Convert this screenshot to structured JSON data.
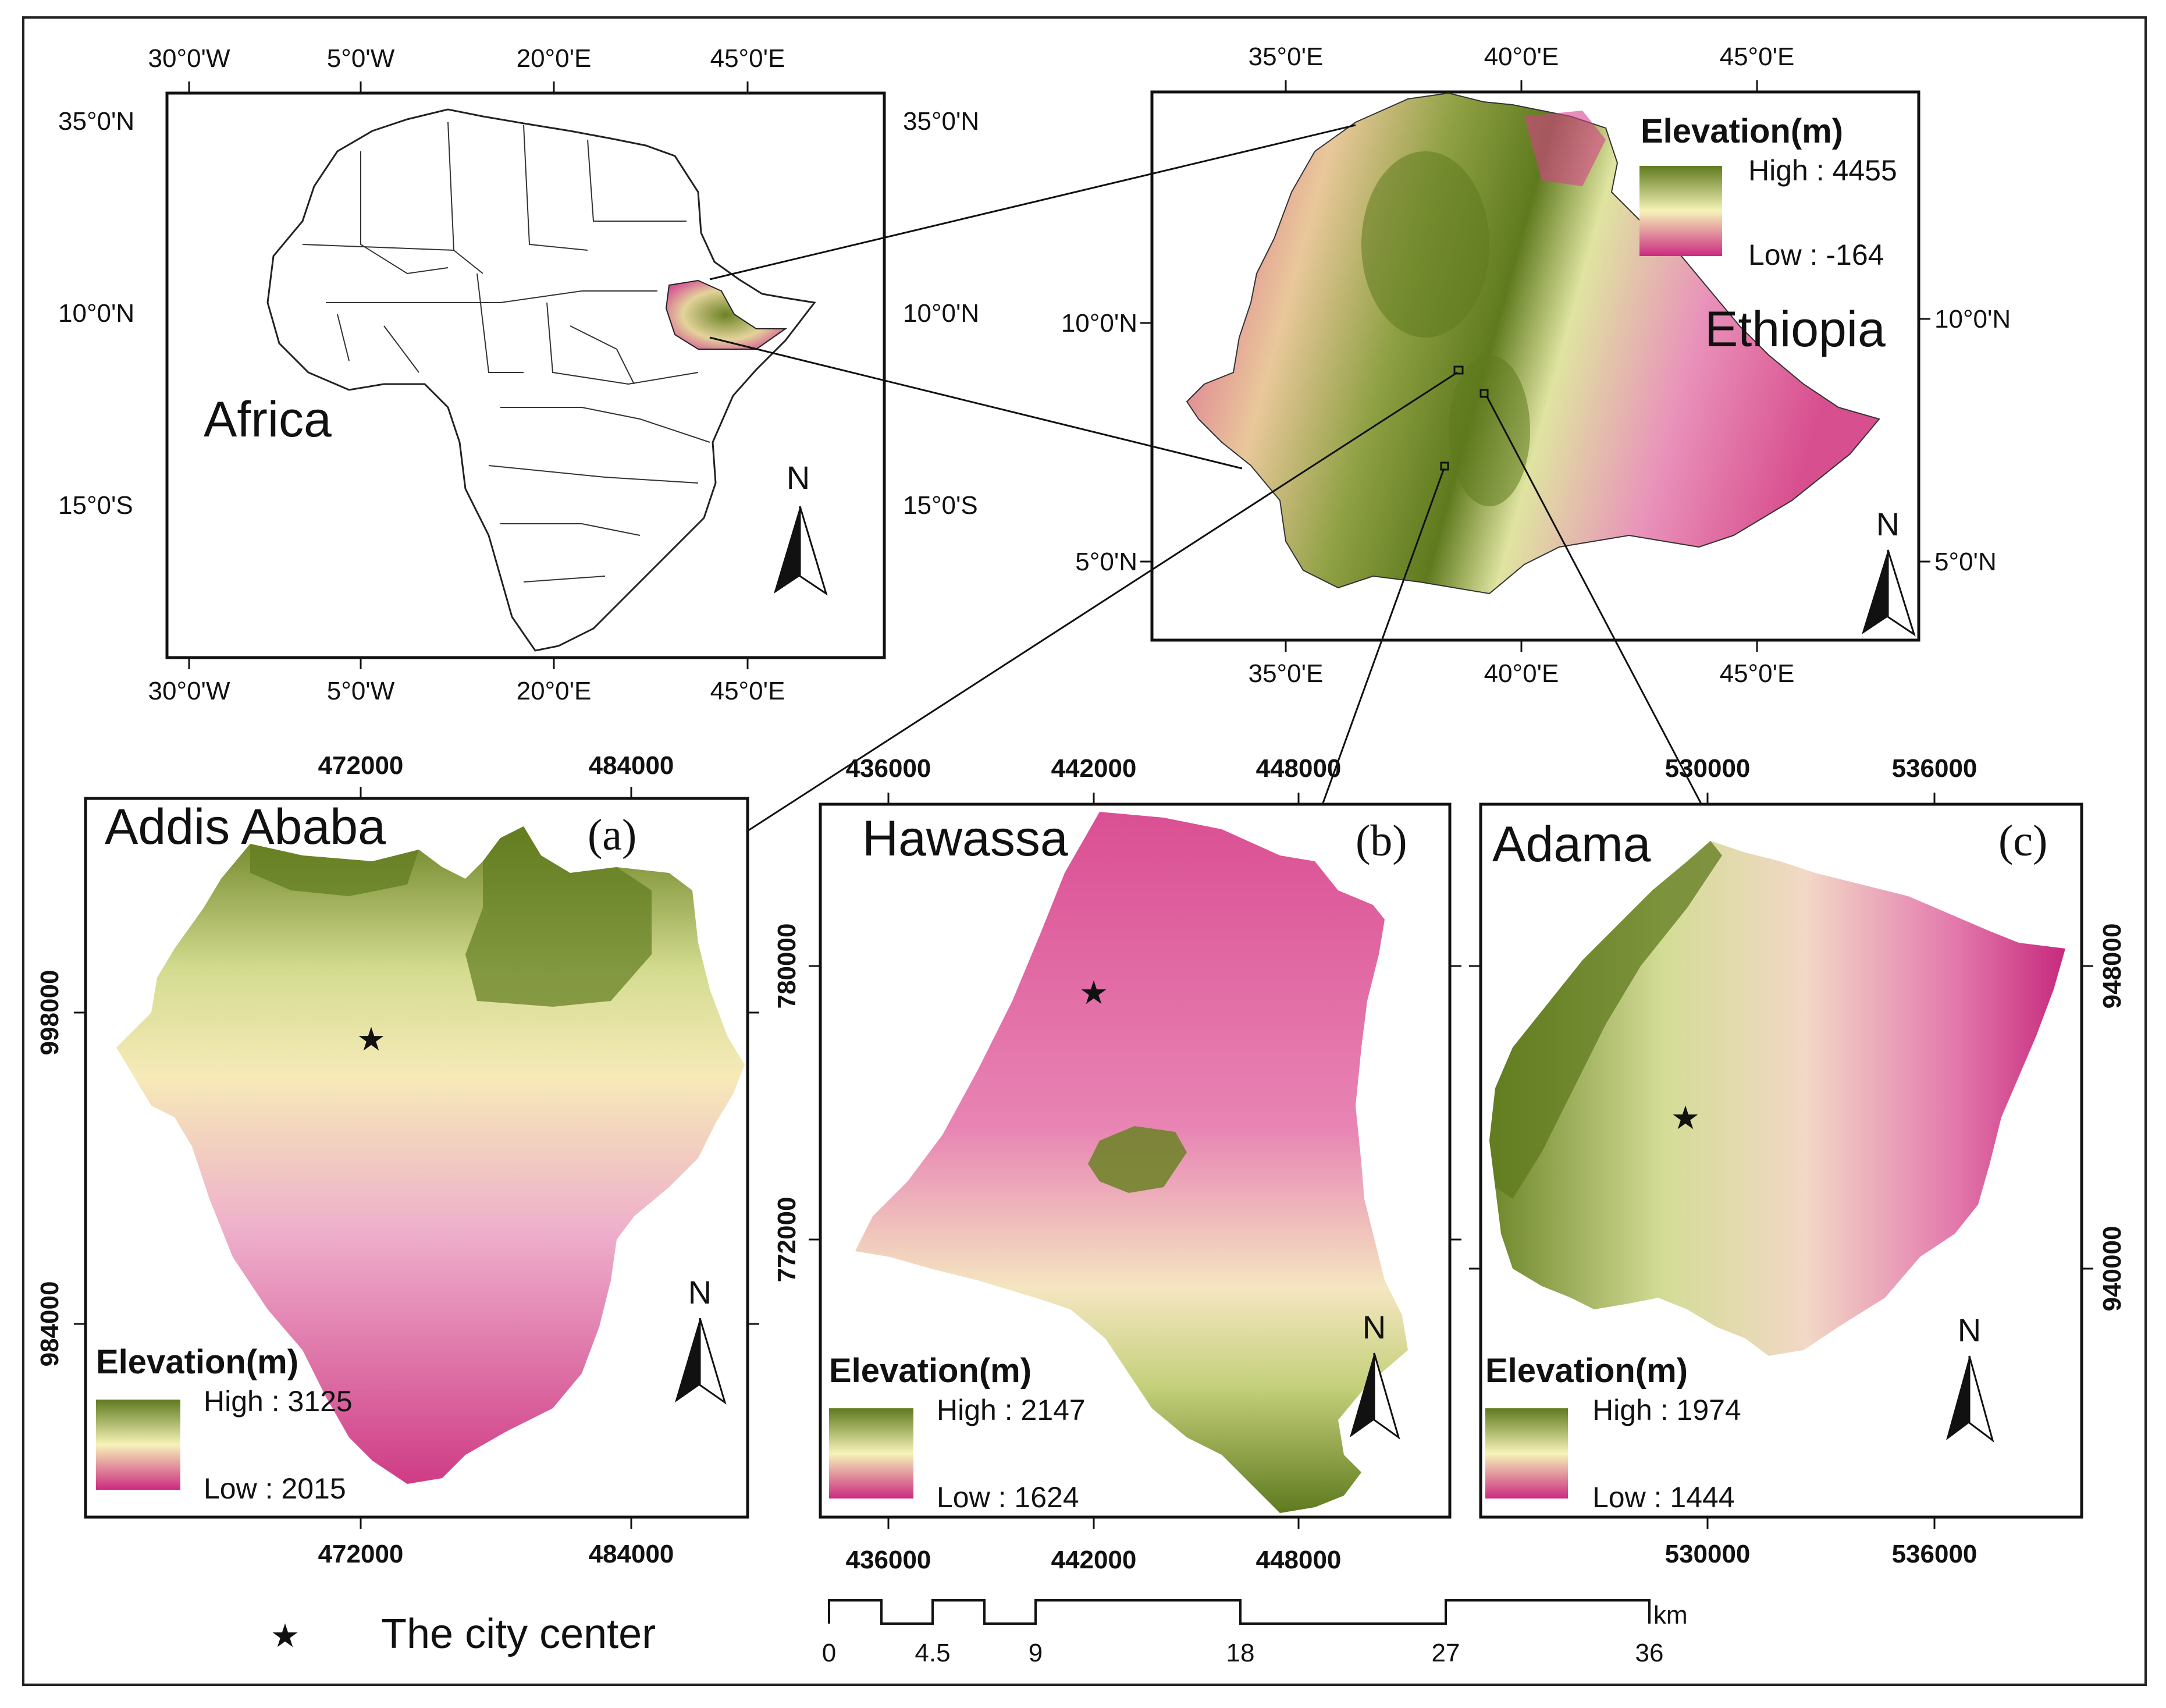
{
  "africa": {
    "label": "Africa",
    "top_ticks": [
      "30°0'W",
      "5°0'W",
      "20°0'E",
      "45°0'E"
    ],
    "bottom_ticks": [
      "30°0'W",
      "5°0'W",
      "20°0'E",
      "45°0'E"
    ],
    "left_ticks": [
      "35°0'N",
      "10°0'N",
      "15°0'S"
    ],
    "right_ticks": [
      "35°0'N",
      "10°0'N",
      "15°0'S"
    ],
    "north": "N"
  },
  "ethiopia": {
    "label": "Ethiopia",
    "top_ticks": [
      "35°0'E",
      "40°0'E",
      "45°0'E"
    ],
    "bottom_ticks": [
      "35°0'E",
      "40°0'E",
      "45°0'E"
    ],
    "left_ticks": [
      "10°0'N",
      "5°0'N"
    ],
    "right_ticks": [
      "10°0'N",
      "5°0'N"
    ],
    "legend": {
      "title": "Elevation(m)",
      "high": "High : 4455",
      "low": "Low : -164"
    },
    "north": "N"
  },
  "addis": {
    "name": "Addis Ababa",
    "letter": "(a)",
    "top_ticks": [
      "472000",
      "484000"
    ],
    "bottom_ticks": [
      "472000",
      "484000"
    ],
    "left_ticks": [
      "998000",
      "984000"
    ],
    "legend": {
      "title": "Elevation(m)",
      "high": "High : 3125",
      "low": "Low : 2015"
    },
    "north": "N"
  },
  "hawassa": {
    "name": "Hawassa",
    "letter": "(b)",
    "top_ticks": [
      "436000",
      "442000",
      "448000"
    ],
    "bottom_ticks": [
      "436000",
      "442000",
      "448000"
    ],
    "left_ticks": [
      "780000",
      "772000"
    ],
    "legend": {
      "title": "Elevation(m)",
      "high": "High : 2147",
      "low": "Low : 1624"
    },
    "north": "N"
  },
  "adama": {
    "name": "Adama",
    "letter": "(c)",
    "top_ticks": [
      "530000",
      "536000"
    ],
    "bottom_ticks": [
      "530000",
      "536000"
    ],
    "right_ticks": [
      "948000",
      "940000"
    ],
    "legend": {
      "title": "Elevation(m)",
      "high": "High : 1974",
      "low": "Low : 1444"
    },
    "north": "N"
  },
  "footer": {
    "city_center": "The city center",
    "scale_labels": [
      "0",
      "4.5",
      "9",
      "18",
      "27",
      "36"
    ],
    "scale_unit": "km"
  },
  "colors": {
    "high": "#5f7a1e",
    "mid": "#f6f3b8",
    "low": "#cc2a80"
  }
}
